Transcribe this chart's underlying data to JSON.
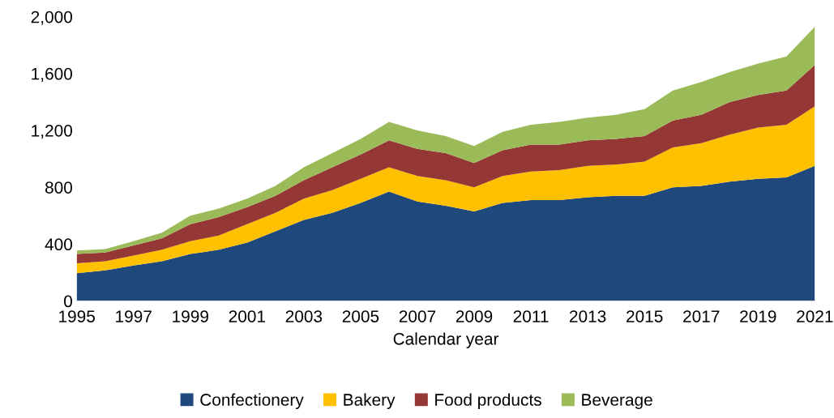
{
  "chart_data": {
    "type": "area",
    "stacked": true,
    "xlabel": "Calendar year",
    "x": [
      1995,
      1996,
      1997,
      1998,
      1999,
      2000,
      2001,
      2002,
      2003,
      2004,
      2005,
      2006,
      2007,
      2008,
      2009,
      2010,
      2011,
      2012,
      2013,
      2014,
      2015,
      2016,
      2017,
      2018,
      2019,
      2020,
      2021
    ],
    "series": [
      {
        "name": "Confectionery",
        "color": "#1f497d",
        "values": [
          195,
          215,
          250,
          280,
          330,
          360,
          410,
          490,
          570,
          620,
          690,
          770,
          700,
          670,
          630,
          690,
          710,
          710,
          730,
          740,
          740,
          800,
          810,
          840,
          860,
          870,
          950
        ]
      },
      {
        "name": "Bakery",
        "color": "#ffc000",
        "values": [
          70,
          65,
          70,
          80,
          90,
          100,
          130,
          130,
          150,
          160,
          170,
          170,
          180,
          180,
          170,
          190,
          200,
          210,
          220,
          220,
          240,
          280,
          300,
          330,
          360,
          370,
          420
        ]
      },
      {
        "name": "Food products",
        "color": "#953735",
        "values": [
          65,
          60,
          70,
          80,
          120,
          130,
          120,
          120,
          130,
          160,
          170,
          190,
          190,
          190,
          170,
          180,
          190,
          180,
          180,
          180,
          180,
          190,
          200,
          230,
          230,
          240,
          290
        ]
      },
      {
        "name": "Beverage",
        "color": "#9bbb59",
        "values": [
          25,
          25,
          30,
          40,
          60,
          60,
          60,
          70,
          90,
          100,
          110,
          130,
          130,
          120,
          120,
          130,
          140,
          160,
          160,
          170,
          190,
          210,
          230,
          210,
          220,
          240,
          270
        ]
      }
    ],
    "xlim": [
      1995,
      2021
    ],
    "xticks": [
      1995,
      1997,
      1999,
      2001,
      2003,
      2005,
      2007,
      2009,
      2011,
      2013,
      2015,
      2017,
      2019,
      2021
    ],
    "ylim": [
      0,
      2000
    ],
    "yticks": [
      {
        "value": 0,
        "label": "0"
      },
      {
        "value": 400,
        "label": "400"
      },
      {
        "value": 800,
        "label": "800"
      },
      {
        "value": 1200,
        "label": "1,200"
      },
      {
        "value": 1600,
        "label": "1,600"
      },
      {
        "value": 2000,
        "label": "2,000"
      }
    ],
    "grid": false,
    "legend": "bottom"
  }
}
